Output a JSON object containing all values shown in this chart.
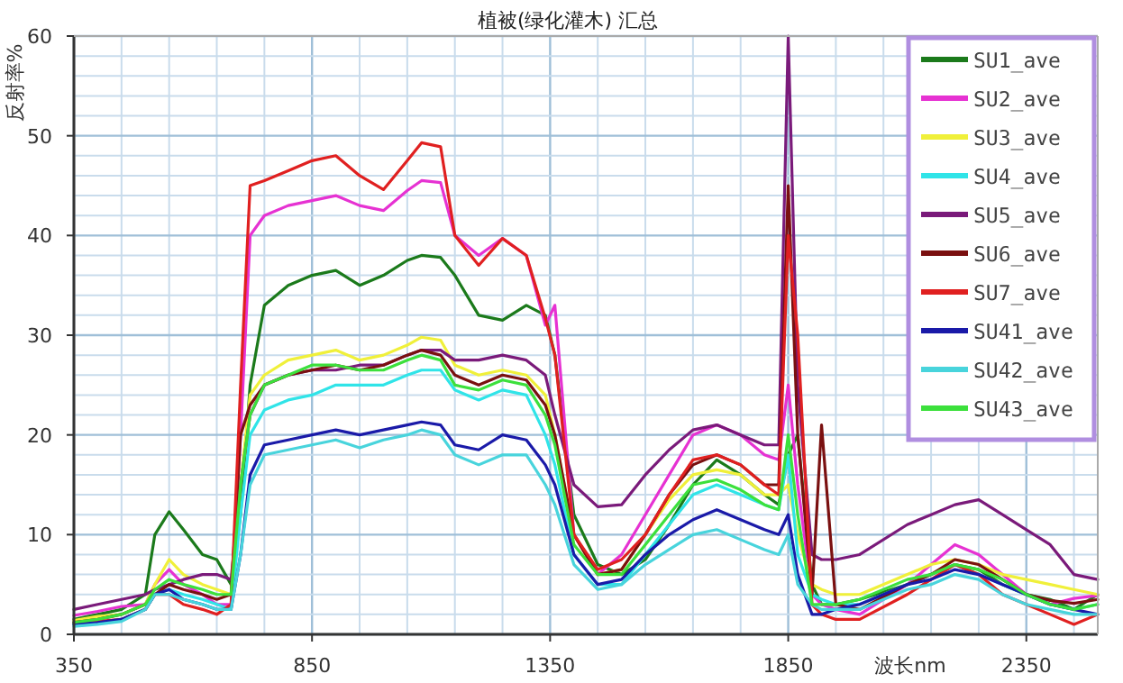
{
  "chart_data": {
    "type": "line",
    "title": "植被(绿化灌木) 汇总",
    "xlabel": "波长nm",
    "ylabel": "反射率%",
    "xlim": [
      350,
      2500
    ],
    "ylim": [
      0,
      60
    ],
    "xticks": [
      350,
      850,
      1350,
      1850,
      2350
    ],
    "yticks": [
      0,
      10,
      20,
      30,
      40,
      50,
      60
    ],
    "grid": true,
    "legend": "top right",
    "marker": "none",
    "line_style": "solid",
    "x": [
      350,
      400,
      450,
      500,
      520,
      550,
      580,
      620,
      650,
      680,
      700,
      720,
      750,
      800,
      850,
      900,
      950,
      1000,
      1050,
      1080,
      1120,
      1150,
      1200,
      1250,
      1300,
      1340,
      1360,
      1400,
      1450,
      1500,
      1550,
      1600,
      1650,
      1700,
      1750,
      1800,
      1830,
      1850,
      1870,
      1900,
      1920,
      1950,
      2000,
      2100,
      2150,
      2200,
      2250,
      2300,
      2350,
      2400,
      2450,
      2500
    ],
    "series": [
      {
        "name": "SU1_ave",
        "color": "#1b7a1b",
        "values": [
          1.5,
          2,
          2.5,
          4,
          10,
          12.3,
          10.5,
          8,
          7.5,
          5,
          12,
          25,
          33,
          35,
          36,
          36.5,
          35,
          36,
          37.5,
          38,
          37.8,
          36,
          32,
          31.5,
          33,
          32,
          28,
          12,
          7,
          6,
          7.5,
          11,
          15,
          17.5,
          16,
          14,
          13,
          18,
          20,
          5,
          3,
          3,
          3.5,
          5,
          6,
          7,
          6.5,
          5,
          4,
          3.5,
          2.5,
          4
        ]
      },
      {
        "name": "SU2_ave",
        "color": "#e632d2",
        "values": [
          1.9,
          2.3,
          2.8,
          3,
          5,
          6.5,
          5,
          4,
          3,
          3,
          20,
          40,
          42,
          43,
          43.5,
          44,
          43,
          42.5,
          44.5,
          45.5,
          45.3,
          40,
          38,
          39.7,
          38,
          31,
          33,
          10,
          6,
          8,
          12,
          16,
          20,
          21,
          20,
          18,
          17.5,
          25,
          15,
          4,
          3,
          2.5,
          2,
          5,
          7,
          9,
          8,
          6,
          4,
          3,
          3.6,
          3.9
        ]
      },
      {
        "name": "SU3_ave",
        "color": "#f0f03a",
        "values": [
          1.4,
          1.8,
          2,
          3,
          5,
          7.5,
          6,
          5,
          4.5,
          4,
          15,
          24,
          26,
          27.5,
          28,
          28.5,
          27.5,
          28,
          29,
          29.8,
          29.5,
          27,
          26,
          26.5,
          26,
          24,
          20,
          10,
          6,
          6.5,
          10,
          13.5,
          16,
          16.5,
          16,
          14,
          14,
          15,
          10,
          5,
          4.5,
          4,
          4,
          6,
          7,
          7.5,
          7,
          6,
          5.5,
          5,
          4.5,
          4
        ]
      },
      {
        "name": "SU4_ave",
        "color": "#30e4e8",
        "values": [
          1,
          1.2,
          1.5,
          2.5,
          4,
          4.5,
          4,
          3.5,
          3,
          2.5,
          12,
          20,
          22.5,
          23.5,
          24,
          25,
          25,
          25,
          26,
          26.5,
          26.5,
          24.5,
          23.5,
          24.5,
          24,
          20,
          17,
          8,
          5,
          5,
          8,
          11,
          14,
          15,
          14,
          13,
          12.5,
          18,
          8,
          4,
          3.5,
          3,
          3,
          5,
          6,
          7,
          6,
          5,
          4,
          3,
          2.5,
          3
        ]
      },
      {
        "name": "SU5_ave",
        "color": "#7a1a7a",
        "values": [
          2.5,
          3,
          3.5,
          4,
          4.5,
          5,
          5.5,
          6,
          6,
          5.5,
          15,
          22,
          25,
          26,
          26.5,
          26.5,
          27,
          27,
          28,
          28.5,
          28.5,
          27.5,
          27.5,
          28,
          27.5,
          26,
          22,
          15,
          12.8,
          13,
          16,
          18.5,
          20.5,
          21,
          20,
          19,
          19,
          60,
          25,
          8,
          7.5,
          7.5,
          8,
          11,
          12,
          13,
          13.5,
          12,
          10.5,
          9,
          6,
          5.5
        ]
      },
      {
        "name": "SU6_ave",
        "color": "#7a1010",
        "values": [
          1.2,
          1.5,
          2,
          3,
          4,
          5,
          4.5,
          4,
          3.5,
          4,
          20,
          23,
          25,
          26,
          26.5,
          27,
          26.5,
          27,
          28,
          28.5,
          28,
          26,
          25,
          26,
          25.5,
          23,
          20,
          10,
          6,
          6.5,
          10,
          14,
          17,
          18,
          17,
          15,
          15,
          45,
          20,
          4,
          21,
          3,
          2.5,
          5,
          6,
          7.5,
          7,
          5.5,
          4,
          3.4,
          3.1,
          3.5
        ]
      },
      {
        "name": "SU7_ave",
        "color": "#e02020",
        "values": [
          1.2,
          1.3,
          1.5,
          2.5,
          4,
          4,
          3,
          2.5,
          2,
          3,
          25,
          45,
          45.5,
          46.5,
          47.5,
          48,
          46,
          44.6,
          47.5,
          49.3,
          48.9,
          40,
          37,
          39.7,
          38,
          31.7,
          28,
          10,
          6.5,
          7.5,
          10,
          14,
          17.5,
          18,
          17,
          15,
          14,
          40,
          30,
          3,
          2,
          1.5,
          1.5,
          4,
          5.5,
          7,
          6,
          4,
          3,
          2,
          1,
          2
        ]
      },
      {
        "name": "SU41_ave",
        "color": "#1a1aa8",
        "values": [
          1,
          1.2,
          1.5,
          2.5,
          4,
          4.5,
          3.5,
          3,
          2.5,
          2.5,
          8,
          16,
          19,
          19.5,
          20,
          20.5,
          20,
          20.5,
          21,
          21.3,
          21,
          19,
          18.5,
          20,
          19.5,
          17,
          15,
          8,
          5,
          5.5,
          8,
          10,
          11.5,
          12.5,
          11.5,
          10.5,
          10,
          12,
          6,
          2,
          2,
          2.5,
          3,
          5,
          5.5,
          6.5,
          6,
          5,
          4,
          3,
          2.5,
          2
        ]
      },
      {
        "name": "SU42_ave",
        "color": "#48d4dc",
        "values": [
          0.8,
          1,
          1.3,
          2.5,
          4,
          4,
          3.5,
          3,
          2.5,
          2.5,
          8,
          15,
          18,
          18.5,
          19,
          19.5,
          18.7,
          19.5,
          20,
          20.5,
          20,
          18,
          17,
          18,
          18,
          15,
          13,
          7,
          4.5,
          5,
          7,
          8.5,
          10,
          10.5,
          9.5,
          8.5,
          8,
          10,
          5,
          3,
          2.5,
          2.5,
          2.5,
          4.5,
          5,
          6,
          5.5,
          4,
          3,
          2.5,
          2,
          2
        ]
      },
      {
        "name": "SU43_ave",
        "color": "#3ce03c",
        "values": [
          1.2,
          1.5,
          2,
          3,
          4.5,
          5.5,
          5,
          4.5,
          4,
          4,
          15,
          22,
          25,
          26,
          27,
          27,
          26.5,
          26.5,
          27.5,
          28,
          27.5,
          25,
          24.5,
          25.5,
          25,
          22,
          19,
          9,
          6,
          6,
          9,
          12,
          15,
          15.5,
          14.5,
          13,
          12.5,
          20,
          12,
          3,
          3,
          3,
          3.5,
          5.5,
          6,
          7,
          6.5,
          5.5,
          4,
          3,
          2.5,
          3
        ]
      }
    ]
  }
}
